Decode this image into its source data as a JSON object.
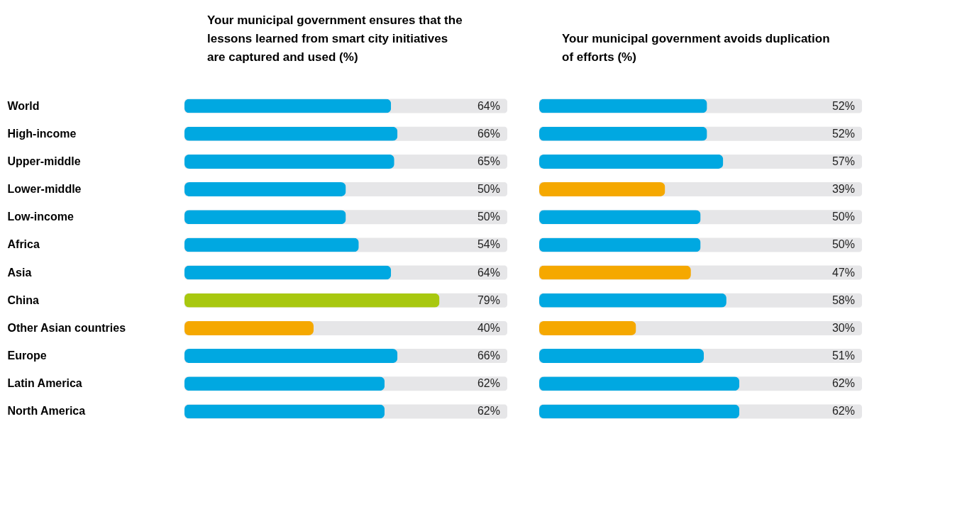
{
  "chart_data": [
    {
      "type": "bar",
      "orientation": "horizontal",
      "title": "Your municipal government ensures that the lessons learned from smart city initiatives are captured and used (%)",
      "categories": [
        "World",
        "High-income",
        "Upper-middle",
        "Lower-middle",
        "Low-income",
        "Africa",
        "Asia",
        "China",
        "Other Asian countries",
        "Europe",
        "Latin America",
        "North America"
      ],
      "xlim": [
        0,
        100
      ],
      "tick_labels": "y",
      "series": [
        {
          "colors": [
            "#00a8e1",
            "#00a8e1",
            "#00a8e1",
            "#00a8e1",
            "#00a8e1",
            "#00a8e1",
            "#00a8e1",
            "#a8c80f",
            "#f5a800",
            "#00a8e1",
            "#00a8e1",
            "#00a8e1"
          ],
          "values": [
            64,
            66,
            65,
            50,
            50,
            54,
            64,
            79,
            40,
            66,
            62,
            62
          ],
          "value_labels": [
            "64%",
            "66%",
            "65%",
            "50%",
            "50%",
            "54%",
            "64%",
            "79%",
            "40%",
            "66%",
            "62%",
            "62%"
          ]
        }
      ]
    },
    {
      "type": "bar",
      "orientation": "horizontal",
      "title": "Your municipal government avoids duplication of efforts (%)",
      "categories": [
        null,
        null,
        null,
        null,
        null,
        null,
        null,
        null,
        null,
        null,
        null,
        null
      ],
      "xlim": [
        0,
        100
      ],
      "tick_labels": false,
      "series": [
        {
          "colors": [
            "#00a8e1",
            "#00a8e1",
            "#00a8e1",
            "#f5a800",
            "#00a8e1",
            "#00a8e1",
            "#f5a800",
            "#00a8e1",
            "#f5a800",
            "#00a8e1",
            "#00a8e1",
            "#00a8e1"
          ],
          "values": [
            52,
            52,
            57,
            39,
            50,
            50,
            47,
            58,
            30,
            51,
            62,
            62
          ],
          "value_labels": [
            "52%",
            "52%",
            "57%",
            "39%",
            "50%",
            "50%",
            "47%",
            "58%",
            "30%",
            "51%",
            "62%",
            "62%"
          ]
        }
      ]
    }
  ]
}
